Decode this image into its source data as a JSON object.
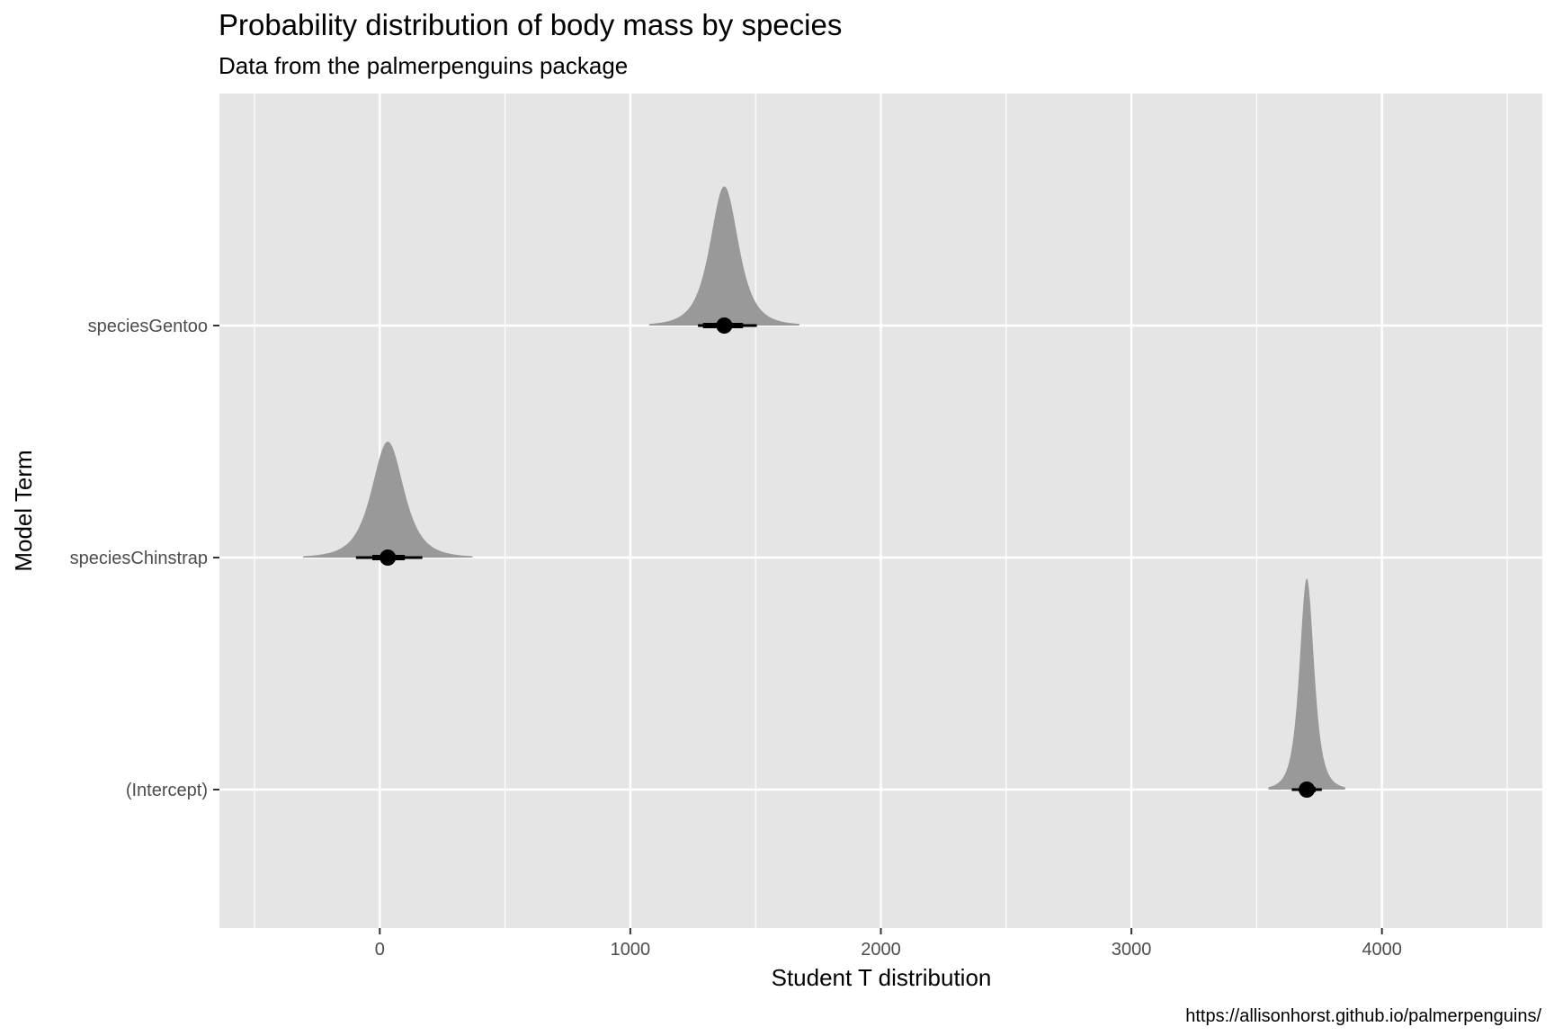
{
  "chart_data": {
    "type": "area",
    "title": "Probability distribution of body mass by species",
    "subtitle": "Data from the palmerpenguins package",
    "xlabel": "Student T distribution",
    "ylabel": "Model Term",
    "caption": "https://allisonhorst.github.io/palmerpenguins/",
    "xlim": [
      -640,
      4640
    ],
    "x_ticks": [
      0,
      1000,
      2000,
      3000,
      4000
    ],
    "x_tick_labels": [
      "0",
      "1000",
      "2000",
      "3000",
      "4000"
    ],
    "categories": [
      "speciesGentoo",
      "speciesChinstrap",
      "(Intercept)"
    ],
    "series": [
      {
        "term": "speciesGentoo",
        "estimate": 1375,
        "interval_66": [
          1290,
          1450
        ],
        "interval_95": [
          1270,
          1505
        ]
      },
      {
        "term": "speciesChinstrap",
        "estimate": 32,
        "interval_66": [
          -30,
          100
        ],
        "interval_95": [
          -95,
          170
        ]
      },
      {
        "term": "(Intercept)",
        "estimate": 3700,
        "interval_66": [
          3670,
          3735
        ],
        "interval_95": [
          3640,
          3760
        ]
      }
    ],
    "grid": true,
    "colors": {
      "panel": "#e5e5e5",
      "grid": "#ffffff",
      "density": "#999999",
      "point": "#000000"
    }
  }
}
